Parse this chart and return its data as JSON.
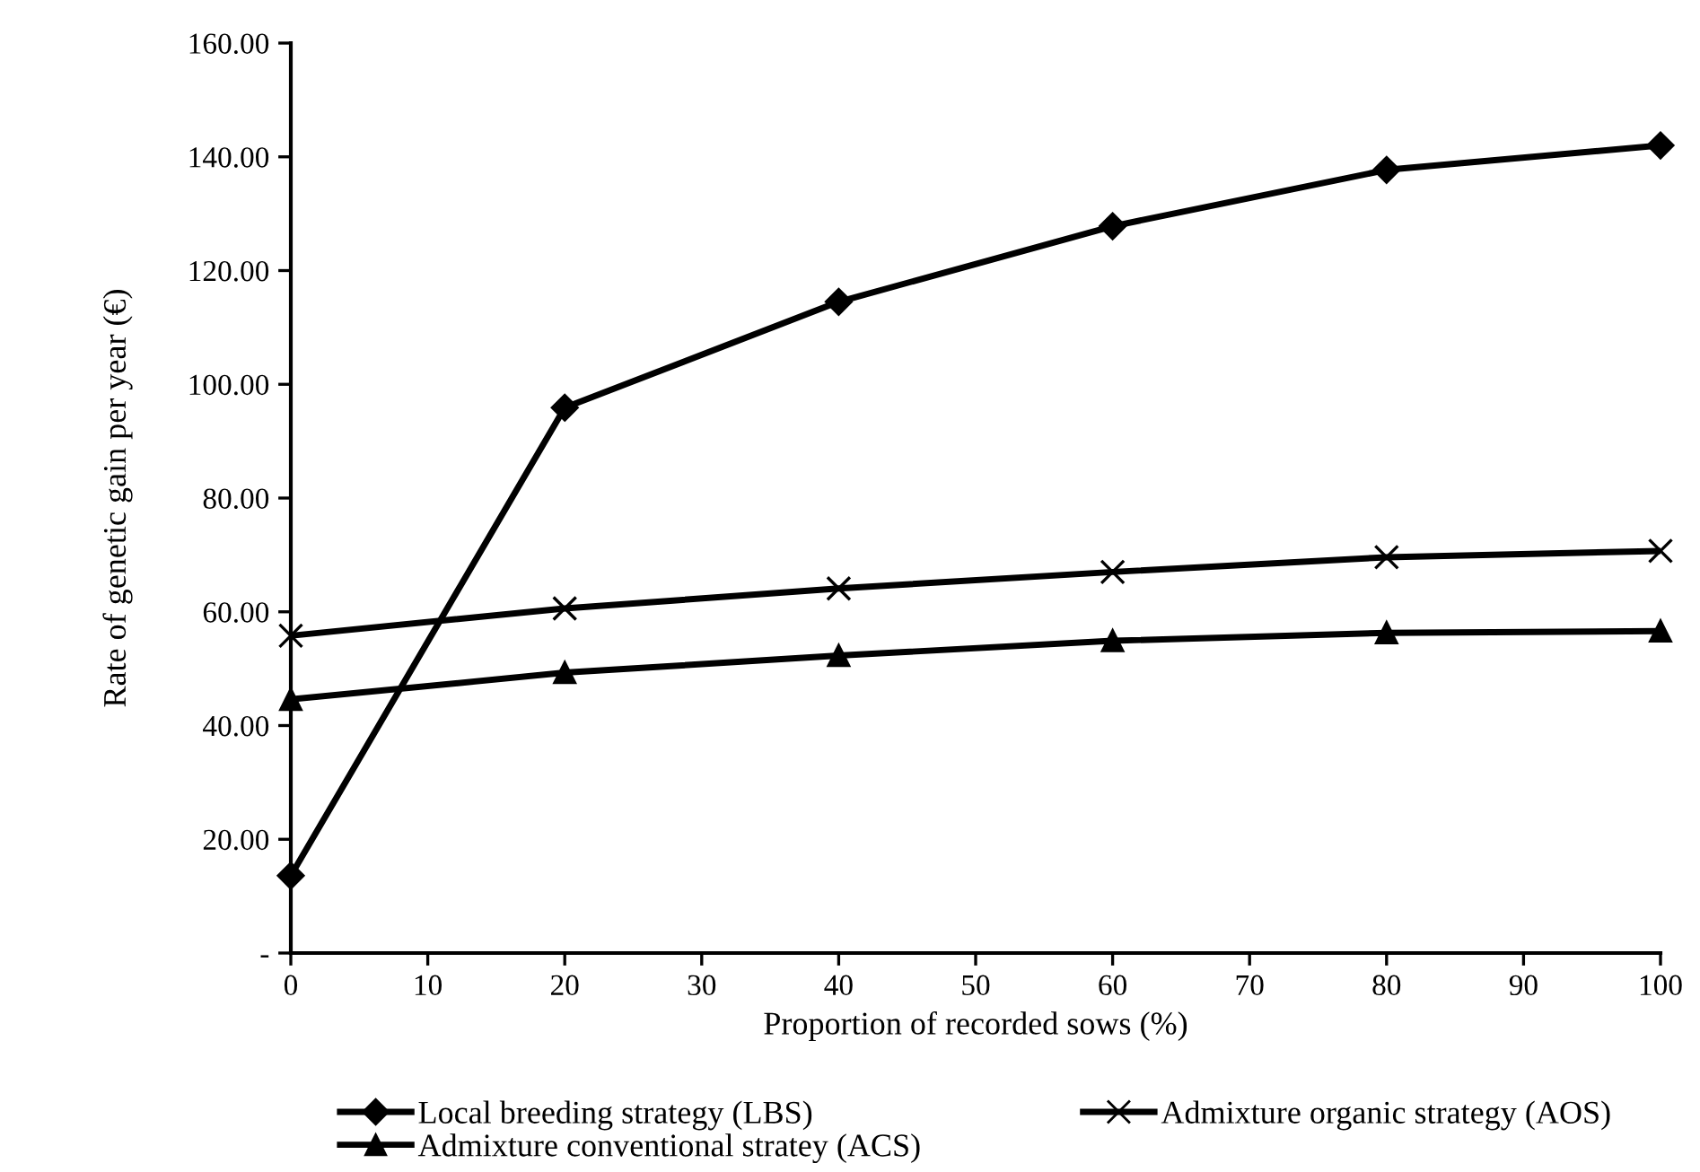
{
  "chart_data": {
    "type": "line",
    "xlabel": "Proportion of recorded sows (%)",
    "ylabel": "Rate of genetic gain per year (€)",
    "x": [
      0,
      20,
      40,
      60,
      80,
      100
    ],
    "series": [
      {
        "name": "Local breeding strategy (LBS)",
        "color": "#000000",
        "marker": "diamond",
        "values": [
          13.6,
          95.9,
          114.5,
          127.8,
          137.7,
          142.0
        ]
      },
      {
        "name": "Admixture organic strategy (AOS)",
        "color": "#000000",
        "marker": "cross",
        "values": [
          55.8,
          60.6,
          64.1,
          67.0,
          69.6,
          70.7
        ]
      },
      {
        "name": "Admixture conventional stratey (ACS)",
        "color": "#000000",
        "marker": "triangle",
        "values": [
          44.6,
          49.3,
          52.3,
          54.9,
          56.3,
          56.6
        ]
      }
    ],
    "xlim": [
      0,
      100
    ],
    "xticks": [
      0,
      10,
      20,
      30,
      40,
      50,
      60,
      70,
      80,
      90,
      100
    ],
    "ylim": [
      0,
      160
    ],
    "yticks": [
      {
        "value": 0,
        "label": "-"
      },
      {
        "value": 20,
        "label": "20.00"
      },
      {
        "value": 40,
        "label": "40.00"
      },
      {
        "value": 60,
        "label": "60.00"
      },
      {
        "value": 80,
        "label": "80.00"
      },
      {
        "value": 100,
        "label": "100.00"
      },
      {
        "value": 120,
        "label": "120.00"
      },
      {
        "value": 140,
        "label": "140.00"
      },
      {
        "value": 160,
        "label": "160.00"
      }
    ],
    "grid": false,
    "legend": "bottom",
    "line_style": "solid"
  }
}
